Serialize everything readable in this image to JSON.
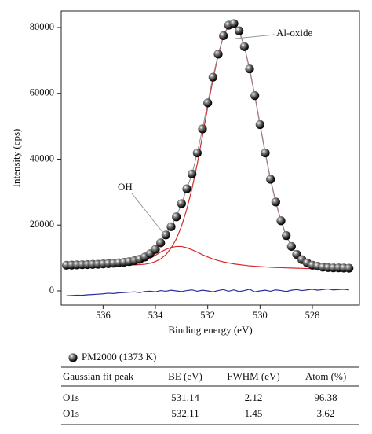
{
  "chart_data": {
    "type": "scatter",
    "x_label": "Binding energy (eV)",
    "y_label": "Intensity (cps)",
    "annotations": [
      "Al-oxide",
      "OH"
    ],
    "xlim": [
      537.6,
      526.2
    ],
    "xticks": [
      536,
      534,
      532,
      530,
      528
    ],
    "ylim": [
      -4300,
      85000
    ],
    "yticks": [
      0,
      20000,
      40000,
      60000,
      80000
    ],
    "x": [
      537.4,
      537.2,
      537,
      536.8,
      536.6,
      536.4,
      536.2,
      536,
      535.8,
      535.6,
      535.4,
      535.2,
      535,
      534.8,
      534.6,
      534.4,
      534.2,
      534,
      533.8,
      533.6,
      533.4,
      533.2,
      533,
      532.8,
      532.6,
      532.4,
      532.2,
      532,
      531.8,
      531.6,
      531.4,
      531.2,
      531,
      530.8,
      530.6,
      530.4,
      530.2,
      530,
      529.8,
      529.6,
      529.4,
      529.2,
      529,
      528.8,
      528.6,
      528.4,
      528.2,
      528,
      527.8,
      527.6,
      527.4,
      527.2,
      527,
      526.8,
      526.6
    ],
    "series": [
      {
        "name": "PM2000 (1373 K)",
        "color": "#222222",
        "marker": "sphere",
        "line_color": "#8c8c8c",
        "values": [
          7800,
          7850,
          7900,
          7950,
          8000,
          8050,
          8100,
          8200,
          8300,
          8400,
          8550,
          8700,
          8900,
          9200,
          9600,
          10300,
          11300,
          12600,
          14600,
          17000,
          19500,
          22500,
          26500,
          31000,
          35500,
          41900,
          49200,
          57100,
          64900,
          71900,
          77500,
          80700,
          81200,
          79000,
          74200,
          67400,
          59300,
          50500,
          41900,
          33900,
          27000,
          21300,
          16800,
          13500,
          11100,
          9500,
          8500,
          7800,
          7500,
          7200,
          7100,
          7000,
          7000,
          6950,
          6900
        ]
      },
      {
        "color": "#d42a2a",
        "values": [
          7800,
          7800,
          7800,
          7800,
          7800,
          7800,
          7800,
          7800,
          7800,
          7800,
          7800,
          7800,
          7800,
          7900,
          8000,
          8100,
          8400,
          8900,
          9700,
          11000,
          13000,
          15800,
          19700,
          24800,
          31100,
          38600,
          47000,
          55800,
          64200,
          71600,
          77300,
          80600,
          81200,
          79000,
          74200,
          67400,
          59300,
          50500,
          41900,
          33900,
          27000,
          21300,
          16800,
          13500,
          11100,
          9500,
          8500,
          7800,
          7500,
          7200,
          7100,
          7000,
          7000,
          6950,
          6900
        ]
      },
      {
        "color": "#d42a2a",
        "values": [
          7600,
          7600,
          7600,
          7600,
          7600,
          7650,
          7650,
          7700,
          7700,
          7750,
          7800,
          7850,
          7950,
          8150,
          8500,
          9100,
          9900,
          10800,
          11800,
          12600,
          13200,
          13500,
          13500,
          13100,
          12500,
          11800,
          11000,
          10300,
          9700,
          9200,
          8800,
          8500,
          8200,
          8000,
          7800,
          7600,
          7500,
          7400,
          7300,
          7200,
          7100,
          7050,
          7000,
          6950,
          6900,
          6850,
          6800,
          6800,
          6750,
          6750,
          6700,
          6700,
          6700,
          6700,
          6700
        ]
      },
      {
        "color": "#2b2f9e",
        "values": [
          -1500,
          -1400,
          -1300,
          -1350,
          -1200,
          -1100,
          -1000,
          -900,
          -700,
          -800,
          -600,
          -500,
          -400,
          -300,
          -500,
          -200,
          -100,
          -300,
          100,
          -100,
          200,
          0,
          -200,
          100,
          300,
          -100,
          200,
          0,
          -300,
          100,
          400,
          -100,
          300,
          -200,
          100,
          500,
          -300,
          0,
          200,
          -100,
          300,
          100,
          -200,
          200,
          400,
          100,
          300,
          500,
          200,
          400,
          600,
          300,
          400,
          500,
          300
        ]
      }
    ]
  },
  "table": {
    "header": [
      "Gaussian fit peak",
      "BE (eV)",
      "FWHM (eV)",
      "Atom (%)"
    ],
    "rows": [
      [
        "O1s",
        531.14,
        2.12,
        96.38
      ],
      [
        "O1s",
        532.11,
        1.45,
        3.62
      ]
    ]
  }
}
